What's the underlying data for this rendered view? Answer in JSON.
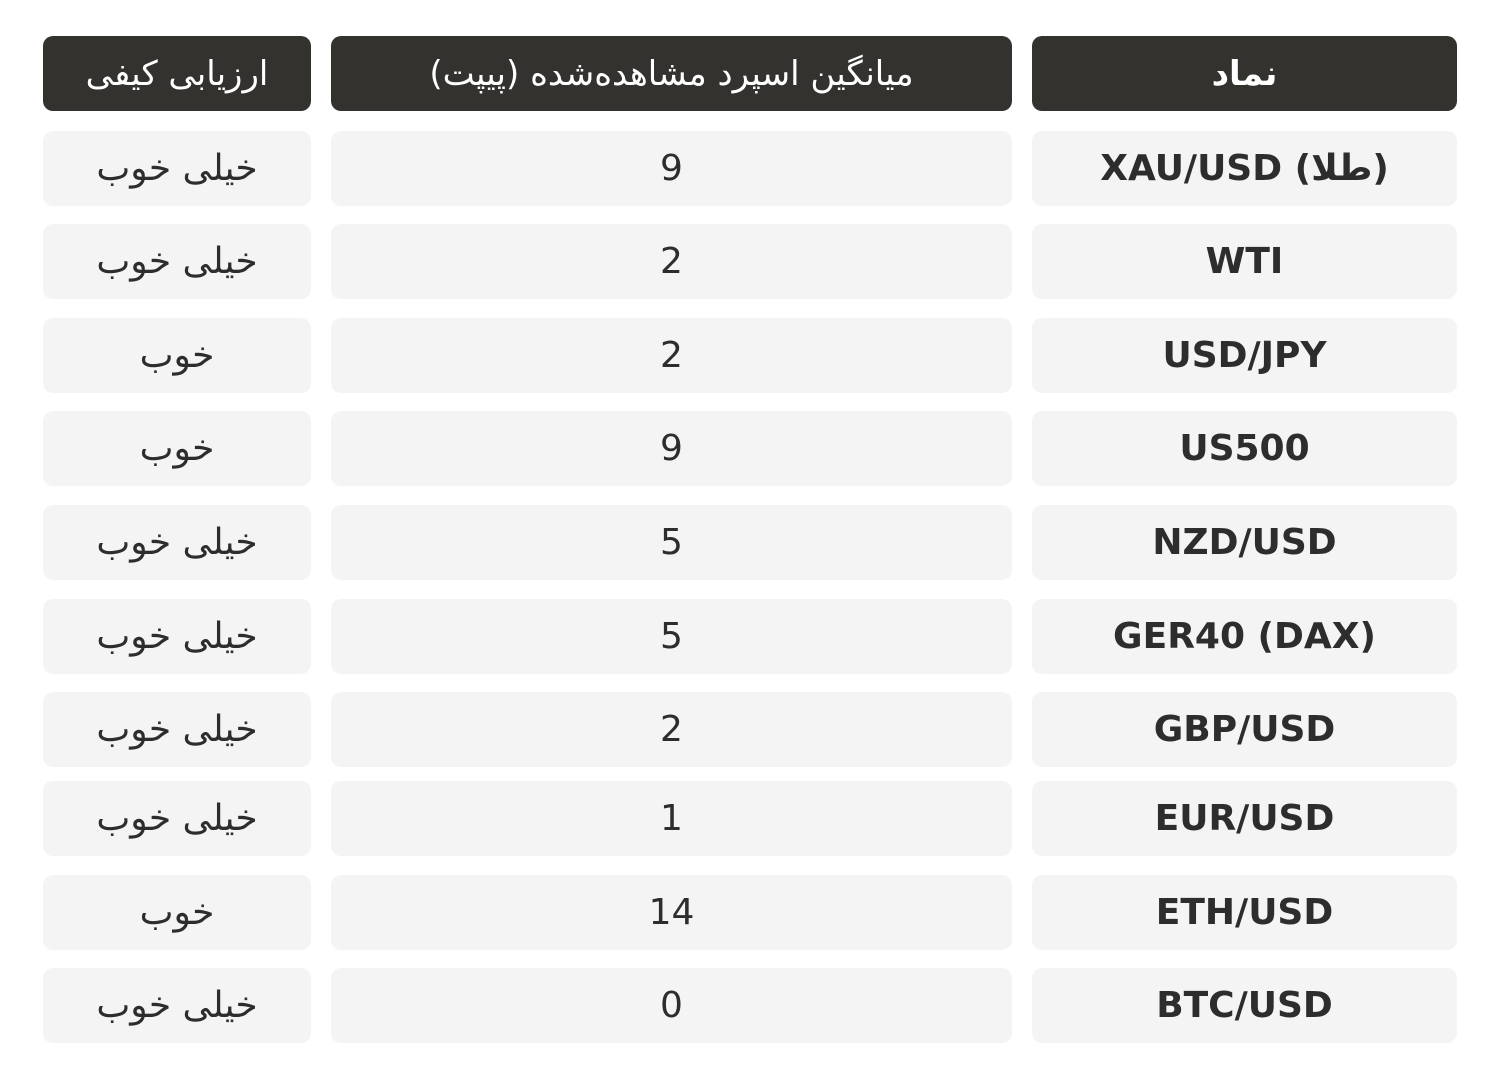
{
  "colors": {
    "header_bg": "#33322e",
    "header_text": "#ffffff",
    "cell_bg": "#f4f4f4",
    "cell_text": "#2d2d2d"
  },
  "table": {
    "headers": {
      "symbol": "نماد",
      "spread": "میانگین اسپرد مشاهده‌شده (پیپت)",
      "quality": "ارزیابی کیفی"
    },
    "rows": [
      {
        "symbol": "XAU/USD (طلا)",
        "spread": "9",
        "quality": "خیلی خوب"
      },
      {
        "symbol": "WTI",
        "spread": "2",
        "quality": "خیلی خوب"
      },
      {
        "symbol": "USD/JPY",
        "spread": "2",
        "quality": "خوب"
      },
      {
        "symbol": "US500",
        "spread": "9",
        "quality": "خوب"
      },
      {
        "symbol": "NZD/USD",
        "spread": "5",
        "quality": "خیلی خوب"
      },
      {
        "symbol": "GER40 (DAX)",
        "spread": "5",
        "quality": "خیلی خوب"
      },
      {
        "symbol": "GBP/USD",
        "spread": "2",
        "quality": "خیلی خوب"
      },
      {
        "symbol": "EUR/USD",
        "spread": "1",
        "quality": "خیلی خوب"
      },
      {
        "symbol": "ETH/USD",
        "spread": "14",
        "quality": "خوب"
      },
      {
        "symbol": "BTC/USD",
        "spread": "0",
        "quality": "خیلی خوب"
      }
    ]
  }
}
